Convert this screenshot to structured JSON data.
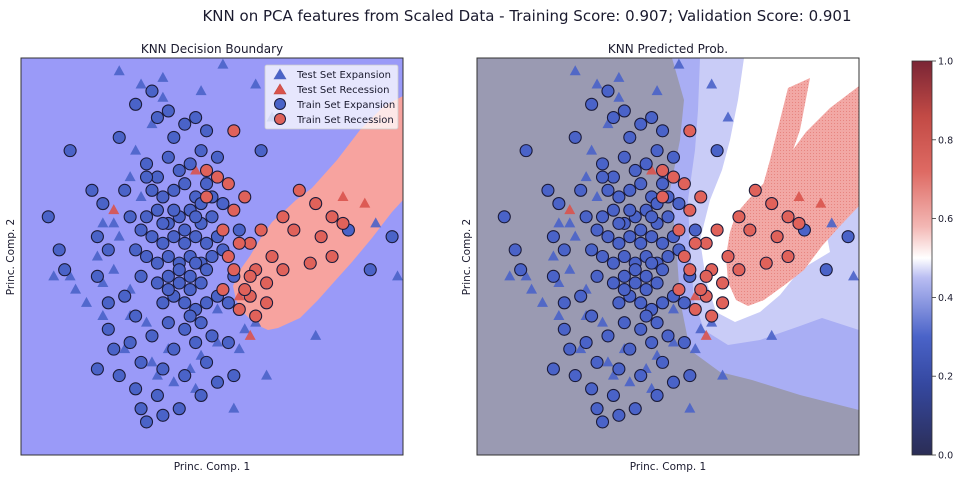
{
  "suptitle": "KNN on PCA features from Scaled Data - Training Score: 0.907; Validation Score: 0.901",
  "colors": {
    "expansion_bg": "#9a9af8",
    "recession_bg": "#f7a39f",
    "train_expansion": "#4a63c8",
    "train_recession": "#e0625a",
    "test_expansion": "#4a63c8",
    "test_recession": "#d9534c",
    "prob_low_bg": "#9a9ab2",
    "marker_edge": "#1b1b3a"
  },
  "chart_data": [
    {
      "type": "scatter",
      "title": "KNN Decision Boundary",
      "xlabel": "Princ. Comp. 1",
      "ylabel": "Princ. Comp. 2",
      "xticks": false,
      "yticks": false,
      "xlim": [
        -3.0,
        4.0
      ],
      "ylim": [
        -3.0,
        3.0
      ],
      "legend_position": "top-right",
      "legend": [
        "Test Set Expansion",
        "Test Set Recession",
        "Train Set Expansion",
        "Train Set Recession"
      ],
      "background_regions": [
        "Expansion",
        "Recession"
      ]
    },
    {
      "type": "heatmap",
      "title": "KNN Predicted Prob.",
      "xlabel": "Princ. Comp. 1",
      "ylabel": "Princ. Comp. 2",
      "xticks": false,
      "yticks": false,
      "xlim": [
        -3.0,
        4.0
      ],
      "ylim": [
        -3.0,
        3.0
      ],
      "colorbar": {
        "ticks": [
          "0.0",
          "0.2",
          "0.4",
          "0.6",
          "0.8",
          "1.0"
        ],
        "range": [
          0.0,
          1.0
        ]
      }
    }
  ],
  "points": {
    "train_expansion": [
      [
        -2.5,
        0.6
      ],
      [
        -2.1,
        1.6
      ],
      [
        -2.3,
        0.1
      ],
      [
        -2.2,
        -0.2
      ],
      [
        -1.6,
        0.3
      ],
      [
        -1.4,
        0.1
      ],
      [
        -1.6,
        -0.3
      ],
      [
        -1.7,
        1.0
      ],
      [
        -1.5,
        0.8
      ],
      [
        -1.1,
        1.0
      ],
      [
        -1.0,
        0.6
      ],
      [
        -1.4,
        -0.7
      ],
      [
        -1.1,
        -0.6
      ],
      [
        -0.9,
        -0.9
      ],
      [
        -1.4,
        -1.1
      ],
      [
        -1.0,
        -1.3
      ],
      [
        -1.3,
        -1.4
      ],
      [
        -0.9,
        2.3
      ],
      [
        -0.6,
        2.5
      ],
      [
        -0.5,
        2.1
      ],
      [
        -0.3,
        2.2
      ],
      [
        -0.2,
        1.8
      ],
      [
        0.0,
        2.0
      ],
      [
        0.2,
        2.1
      ],
      [
        -0.7,
        1.4
      ],
      [
        -0.5,
        1.2
      ],
      [
        -0.3,
        1.5
      ],
      [
        -0.1,
        1.3
      ],
      [
        0.1,
        1.4
      ],
      [
        0.3,
        1.6
      ],
      [
        -0.6,
        1.0
      ],
      [
        -0.4,
        0.9
      ],
      [
        -0.2,
        1.0
      ],
      [
        0.0,
        1.1
      ],
      [
        0.2,
        0.9
      ],
      [
        0.4,
        1.1
      ],
      [
        -0.7,
        0.6
      ],
      [
        -0.5,
        0.7
      ],
      [
        -0.3,
        0.5
      ],
      [
        -0.1,
        0.6
      ],
      [
        0.1,
        0.7
      ],
      [
        0.3,
        0.5
      ],
      [
        0.5,
        0.6
      ],
      [
        0.7,
        0.8
      ],
      [
        -0.6,
        0.3
      ],
      [
        -0.4,
        0.2
      ],
      [
        -0.2,
        0.3
      ],
      [
        0.0,
        0.2
      ],
      [
        0.2,
        0.3
      ],
      [
        0.4,
        0.2
      ],
      [
        0.6,
        0.3
      ],
      [
        -0.7,
        0.0
      ],
      [
        -0.5,
        -0.1
      ],
      [
        -0.3,
        0.0
      ],
      [
        -0.1,
        -0.1
      ],
      [
        0.1,
        0.0
      ],
      [
        0.3,
        -0.1
      ],
      [
        0.5,
        0.0
      ],
      [
        -0.5,
        -0.4
      ],
      [
        -0.3,
        -0.3
      ],
      [
        -0.1,
        -0.4
      ],
      [
        0.1,
        -0.3
      ],
      [
        0.3,
        -0.4
      ],
      [
        -0.4,
        -0.7
      ],
      [
        -0.2,
        -0.6
      ],
      [
        0.0,
        -0.7
      ],
      [
        0.2,
        -0.8
      ],
      [
        -0.3,
        -1.0
      ],
      [
        0.0,
        -1.1
      ],
      [
        0.3,
        -1.0
      ],
      [
        -0.6,
        -1.2
      ],
      [
        -0.2,
        -1.4
      ],
      [
        0.2,
        -1.3
      ],
      [
        0.5,
        -1.2
      ],
      [
        -0.8,
        -1.6
      ],
      [
        -0.4,
        -1.7
      ],
      [
        0.0,
        -1.8
      ],
      [
        0.4,
        -1.6
      ],
      [
        -1.6,
        -1.7
      ],
      [
        -1.2,
        -1.8
      ],
      [
        -0.9,
        -2.0
      ],
      [
        -0.5,
        -2.1
      ],
      [
        -0.8,
        -2.3
      ],
      [
        -0.7,
        -2.5
      ],
      [
        -0.4,
        -2.4
      ],
      [
        -0.1,
        -2.3
      ],
      [
        0.3,
        -2.1
      ],
      [
        0.9,
        -1.8
      ],
      [
        0.7,
        0.1
      ],
      [
        0.9,
        -0.3
      ],
      [
        1.0,
        0.4
      ],
      [
        0.8,
        -0.7
      ],
      [
        -0.8,
        0.4
      ],
      [
        -0.9,
        0.1
      ],
      [
        -0.8,
        -0.3
      ],
      [
        -0.7,
        1.2
      ],
      [
        0.4,
        1.9
      ],
      [
        0.6,
        1.5
      ],
      [
        0.5,
        0.9
      ],
      [
        0.6,
        -0.6
      ],
      [
        0.4,
        -0.7
      ],
      [
        0.1,
        -0.9
      ],
      [
        -0.2,
        0.7
      ],
      [
        0.0,
        0.4
      ],
      [
        0.2,
        0.6
      ],
      [
        -0.4,
        0.5
      ],
      [
        0.3,
        0.8
      ],
      [
        -0.1,
        -0.2
      ],
      [
        0.2,
        -0.1
      ],
      [
        0.4,
        -0.2
      ],
      [
        -0.3,
        -0.5
      ],
      [
        0.1,
        -0.5
      ],
      [
        1.4,
        1.6
      ],
      [
        3.8,
        0.3
      ],
      [
        3.4,
        -0.2
      ],
      [
        3.0,
        0.4
      ],
      [
        -1.2,
        1.8
      ],
      [
        0.8,
        -1.3
      ],
      [
        0.6,
        -1.9
      ]
    ],
    "train_recession": [
      [
        0.9,
        1.9
      ],
      [
        0.6,
        1.2
      ],
      [
        0.4,
        1.3
      ],
      [
        0.8,
        1.1
      ],
      [
        1.1,
        0.9
      ],
      [
        0.9,
        0.7
      ],
      [
        1.4,
        0.4
      ],
      [
        1.6,
        0.0
      ],
      [
        1.8,
        -0.2
      ],
      [
        1.5,
        -0.4
      ],
      [
        1.2,
        -0.6
      ],
      [
        1.0,
        -0.8
      ],
      [
        1.1,
        -0.5
      ],
      [
        1.3,
        -0.9
      ],
      [
        2.1,
        1.0
      ],
      [
        2.4,
        0.8
      ],
      [
        2.7,
        0.6
      ],
      [
        2.9,
        0.5
      ],
      [
        2.3,
        -0.1
      ],
      [
        2.7,
        0.0
      ],
      [
        0.7,
        0.4
      ],
      [
        0.8,
        0.0
      ],
      [
        1.2,
        0.2
      ],
      [
        0.4,
        0.9
      ],
      [
        1.0,
        0.2
      ],
      [
        0.9,
        -0.2
      ],
      [
        1.3,
        -0.2
      ],
      [
        1.5,
        -0.7
      ],
      [
        1.2,
        -0.3
      ],
      [
        0.7,
        -0.5
      ],
      [
        2.5,
        0.3
      ],
      [
        2.0,
        0.4
      ],
      [
        1.8,
        0.6
      ]
    ],
    "test_expansion": [
      [
        -1.2,
        2.8
      ],
      [
        -0.8,
        2.6
      ],
      [
        -0.4,
        2.7
      ],
      [
        0.7,
        2.9
      ],
      [
        1.3,
        2.6
      ],
      [
        1.6,
        2.1
      ],
      [
        -0.6,
        2.0
      ],
      [
        -0.9,
        1.6
      ],
      [
        -1.0,
        1.2
      ],
      [
        -0.8,
        0.9
      ],
      [
        -1.3,
        0.5
      ],
      [
        -1.2,
        0.3
      ],
      [
        -1.5,
        0.5
      ],
      [
        -1.3,
        -0.2
      ],
      [
        -1.6,
        0.0
      ],
      [
        -1.5,
        -0.4
      ],
      [
        -1.0,
        -0.5
      ],
      [
        -1.8,
        -0.7
      ],
      [
        -1.5,
        -0.9
      ],
      [
        -1.0,
        -0.9
      ],
      [
        -0.7,
        -1.0
      ],
      [
        -2.0,
        -0.5
      ],
      [
        -0.6,
        -1.6
      ],
      [
        -0.5,
        -1.8
      ],
      [
        -0.3,
        -1.4
      ],
      [
        -0.2,
        -1.9
      ],
      [
        0.1,
        -1.7
      ],
      [
        0.2,
        -2.0
      ],
      [
        -0.4,
        2.4
      ],
      [
        0.4,
        1.2
      ],
      [
        0.3,
        -1.5
      ],
      [
        0.6,
        -1.3
      ],
      [
        0.9,
        -2.3
      ],
      [
        1.0,
        -1.4
      ],
      [
        1.3,
        -1.0
      ],
      [
        1.5,
        -1.8
      ],
      [
        0.6,
        -0.8
      ],
      [
        3.5,
        0.5
      ],
      [
        3.9,
        -0.3
      ],
      [
        2.4,
        -1.2
      ],
      [
        -2.1,
        -0.3
      ],
      [
        -2.4,
        -0.3
      ],
      [
        -1.1,
        -1.4
      ],
      [
        1.1,
        -1.1
      ],
      [
        0.3,
        2.5
      ]
    ],
    "test_recession": [
      [
        -1.3,
        0.7
      ],
      [
        2.9,
        0.9
      ],
      [
        3.3,
        0.8
      ],
      [
        0.2,
        1.3
      ],
      [
        1.0,
        -0.6
      ],
      [
        1.2,
        -1.2
      ]
    ]
  }
}
